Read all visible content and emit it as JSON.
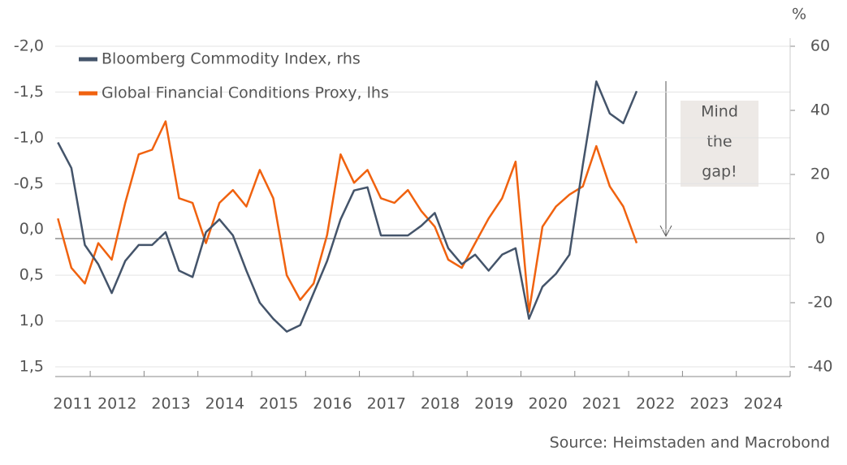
{
  "chart_data": {
    "type": "line",
    "y_unit": "%",
    "source": "Source: Heimstaden and Macrobond",
    "annotation_lines": [
      "Mind",
      "the",
      "gap!"
    ],
    "x": [
      2011.4,
      2011.65,
      2011.9,
      2012.15,
      2012.4,
      2012.65,
      2012.9,
      2013.15,
      2013.4,
      2013.65,
      2013.9,
      2014.15,
      2014.4,
      2014.65,
      2014.9,
      2015.15,
      2015.4,
      2015.65,
      2015.9,
      2016.15,
      2016.4,
      2016.65,
      2016.9,
      2017.15,
      2017.4,
      2017.65,
      2017.9,
      2018.15,
      2018.4,
      2018.65,
      2018.9,
      2019.15,
      2019.4,
      2019.65,
      2019.9,
      2020.15,
      2020.4,
      2020.65,
      2020.9,
      2021.15,
      2021.4,
      2021.65,
      2021.9,
      2022.15
    ],
    "xlim": [
      2011.35,
      2025
    ],
    "xticks": [
      {
        "value": 2011,
        "label": "2011"
      },
      {
        "value": 2012,
        "label": "2012"
      },
      {
        "value": 2013,
        "label": "2013"
      },
      {
        "value": 2014,
        "label": "2014"
      },
      {
        "value": 2015,
        "label": "2015"
      },
      {
        "value": 2016,
        "label": "2016"
      },
      {
        "value": 2017,
        "label": "2017"
      },
      {
        "value": 2018,
        "label": "2018"
      },
      {
        "value": 2019,
        "label": "2019"
      },
      {
        "value": 2020,
        "label": "2020"
      },
      {
        "value": 2021,
        "label": "2021"
      },
      {
        "value": 2022,
        "label": "2022"
      },
      {
        "value": 2023,
        "label": "2023"
      },
      {
        "value": 2024,
        "label": "2024"
      }
    ],
    "ylim": [
      -2,
      1.5
    ],
    "y_inverted": true,
    "yticks": [
      {
        "value": -2,
        "label": "-2,0"
      },
      {
        "value": -1.5,
        "label": "-1,5"
      },
      {
        "value": -1,
        "label": "-1,0"
      },
      {
        "value": -0.5,
        "label": "-0,5"
      },
      {
        "value": 0,
        "label": "0,0"
      },
      {
        "value": 0.5,
        "label": "0,5"
      },
      {
        "value": 1,
        "label": "1,0"
      },
      {
        "value": 1.5,
        "label": "1,5"
      }
    ],
    "y2lim": [
      -40,
      60
    ],
    "y2ticks": [
      60,
      40,
      20,
      0,
      -20,
      -40
    ],
    "y2_zero_line": true,
    "grid": true,
    "legend": "top-left",
    "series": [
      {
        "name": "Bloomberg Commodity Index, rhs",
        "color": "#44546a",
        "axis": "y2",
        "values": [
          30,
          22,
          -2,
          -8,
          -17,
          -7,
          -2,
          -2,
          2,
          -10,
          -12,
          2,
          6,
          1,
          -10,
          -20,
          -25,
          -29,
          -27,
          -17,
          -7,
          6,
          15,
          16,
          1,
          1,
          1,
          4,
          8,
          -3,
          -8,
          -5,
          -10,
          -5,
          -3,
          -25,
          -15,
          -11,
          -5,
          23,
          49,
          39,
          36,
          46
        ]
      },
      {
        "name": "Global Financial Conditions Proxy, lhs",
        "color": "#f0620f",
        "values": [
          -0.12,
          0.42,
          0.59,
          0.15,
          0.33,
          -0.29,
          -0.82,
          -0.87,
          -1.18,
          -0.34,
          -0.29,
          0.15,
          -0.29,
          -0.43,
          -0.25,
          -0.65,
          -0.34,
          0.5,
          0.77,
          0.59,
          0.06,
          -0.82,
          -0.51,
          -0.65,
          -0.34,
          -0.29,
          -0.43,
          -0.2,
          -0.03,
          0.33,
          0.42,
          0.15,
          -0.12,
          -0.34,
          -0.74,
          0.9,
          -0.03,
          -0.25,
          -0.38,
          -0.47,
          -0.91,
          -0.47,
          -0.25,
          0.15
        ]
      }
    ]
  }
}
